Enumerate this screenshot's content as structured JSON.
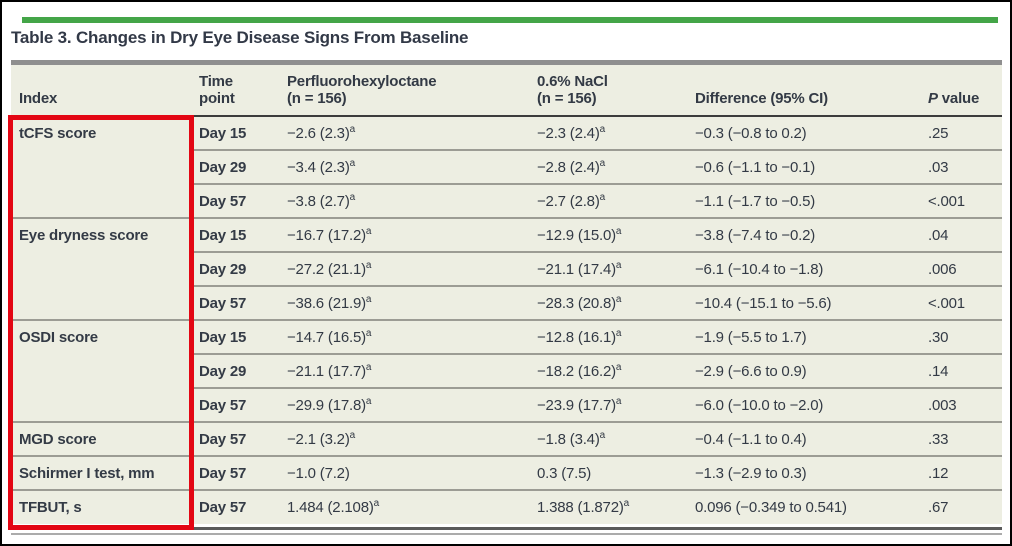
{
  "title": "Table 3. Changes in Dry Eye Disease Signs From Baseline",
  "colors": {
    "green_bar": "#44a548",
    "red_highlight_box": "#e30613",
    "table_background": "#edeee2",
    "text": "#333a45"
  },
  "table": {
    "header": {
      "index": "Index",
      "time": "Time\npoint",
      "drug": "Perfluorohexyloctane\n(n = 156)",
      "nacl": "0.6% NaCl\n(n = 156)",
      "diff": "Difference (95% CI)",
      "p_italic": "P",
      "p_rest": " value"
    },
    "rows": [
      {
        "index": "tCFS score",
        "day": "Day 15",
        "drug": "−2.6 (2.3)",
        "drug_sup": "a",
        "nacl": "−2.3 (2.4)",
        "nacl_sup": "a",
        "diff": "−0.3 (−0.8 to 0.2)",
        "p": ".25"
      },
      {
        "day": "Day 29",
        "drug": "−3.4 (2.3)",
        "drug_sup": "a",
        "nacl": "−2.8 (2.4)",
        "nacl_sup": "a",
        "diff": "−0.6 (−1.1 to −0.1)",
        "p": ".03"
      },
      {
        "day": "Day 57",
        "drug": "−3.8 (2.7)",
        "drug_sup": "a",
        "nacl": "−2.7 (2.8)",
        "nacl_sup": "a",
        "diff": "−1.1 (−1.7 to −0.5)",
        "p": "<.001"
      },
      {
        "index": "Eye dryness score",
        "day": "Day 15",
        "drug": "−16.7 (17.2)",
        "drug_sup": "a",
        "nacl": "−12.9 (15.0)",
        "nacl_sup": "a",
        "diff": "−3.8 (−7.4 to −0.2)",
        "p": ".04"
      },
      {
        "day": "Day 29",
        "drug": "−27.2 (21.1)",
        "drug_sup": "a",
        "nacl": "−21.1 (17.4)",
        "nacl_sup": "a",
        "diff": "−6.1 (−10.4 to −1.8)",
        "p": ".006"
      },
      {
        "day": "Day 57",
        "drug": "−38.6 (21.9)",
        "drug_sup": "a",
        "nacl": "−28.3 (20.8)",
        "nacl_sup": "a",
        "diff": "−10.4 (−15.1 to −5.6)",
        "p": "<.001"
      },
      {
        "index": "OSDI score",
        "day": "Day 15",
        "drug": "−14.7 (16.5)",
        "drug_sup": "a",
        "nacl": "−12.8 (16.1)",
        "nacl_sup": "a",
        "diff": "−1.9 (−5.5 to 1.7)",
        "p": ".30"
      },
      {
        "day": "Day 29",
        "drug": "−21.1 (17.7)",
        "drug_sup": "a",
        "nacl": "−18.2 (16.2)",
        "nacl_sup": "a",
        "diff": "−2.9 (−6.6 to 0.9)",
        "p": ".14"
      },
      {
        "day": "Day 57",
        "drug": "−29.9 (17.8)",
        "drug_sup": "a",
        "nacl": "−23.9 (17.7)",
        "nacl_sup": "a",
        "diff": "−6.0 (−10.0 to −2.0)",
        "p": ".003"
      },
      {
        "index": "MGD score",
        "day": "Day 57",
        "drug": "−2.1 (3.2)",
        "drug_sup": "a",
        "nacl": "−1.8 (3.4)",
        "nacl_sup": "a",
        "diff": "−0.4 (−1.1 to 0.4)",
        "p": ".33"
      },
      {
        "index": "Schirmer I test, mm",
        "day": "Day 57",
        "drug": "−1.0 (7.2)",
        "drug_sup": "",
        "nacl": "0.3 (7.5)",
        "nacl_sup": "",
        "diff": "−1.3 (−2.9 to 0.3)",
        "p": ".12"
      },
      {
        "index": "TFBUT, s",
        "day": "Day 57",
        "drug": "1.484 (2.108)",
        "drug_sup": "a",
        "nacl": "1.388 (1.872)",
        "nacl_sup": "a",
        "diff": "0.096 (−0.349 to 0.541)",
        "p": ".67"
      }
    ]
  }
}
